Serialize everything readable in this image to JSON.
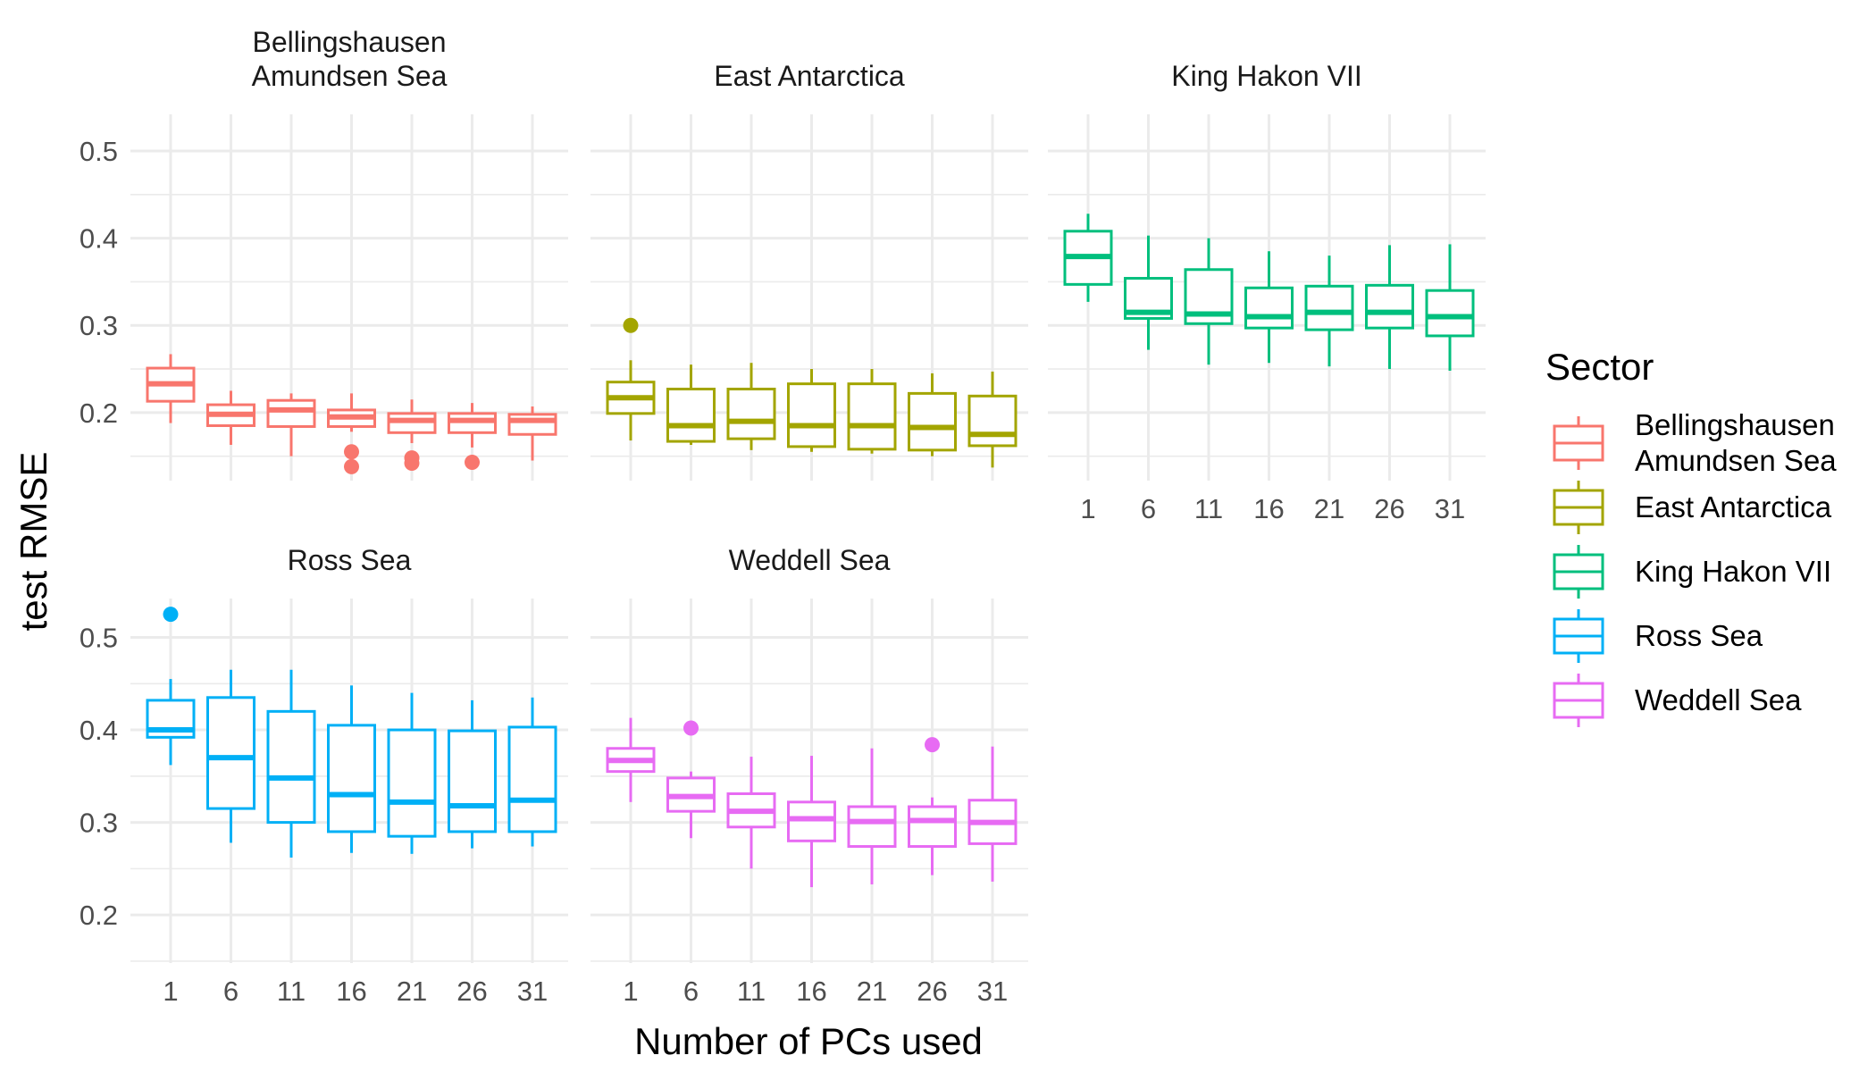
{
  "chart_data": {
    "type": "boxplot",
    "xlabel": "Number of PCs used",
    "ylabel": "test RMSE",
    "x_categories": [
      "1",
      "6",
      "11",
      "16",
      "21",
      "26",
      "31"
    ],
    "y_ticks": [
      0.2,
      0.3,
      0.4,
      0.5
    ],
    "y_tick_labels": [
      "0.2",
      "0.3",
      "0.4",
      "0.5"
    ],
    "rows": [
      {
        "ylim": [
          0.122,
          0.542
        ]
      },
      {
        "ylim": [
          0.148,
          0.542
        ]
      }
    ],
    "grid": true,
    "legend": {
      "title": "Sector",
      "position": "right",
      "items": [
        {
          "label_lines": [
            "Bellingshausen",
            "Amundsen Sea"
          ],
          "color": "#F8766D"
        },
        {
          "label_lines": [
            "East Antarctica"
          ],
          "color": "#A3A500"
        },
        {
          "label_lines": [
            "King Hakon VII"
          ],
          "color": "#00BF7D"
        },
        {
          "label_lines": [
            "Ross Sea"
          ],
          "color": "#00B0F6"
        },
        {
          "label_lines": [
            "Weddell Sea"
          ],
          "color": "#E76BF3"
        }
      ]
    },
    "facets": [
      {
        "title_lines": [
          "Bellingshausen",
          "Amundsen Sea"
        ],
        "color": "#F8766D",
        "row": 0,
        "col": 0,
        "show_x_ticks": false,
        "boxes": [
          {
            "x": "1",
            "low": 0.188,
            "q1": 0.213,
            "median": 0.233,
            "q3": 0.251,
            "high": 0.267,
            "outliers": []
          },
          {
            "x": "6",
            "low": 0.163,
            "q1": 0.185,
            "median": 0.198,
            "q3": 0.209,
            "high": 0.225,
            "outliers": []
          },
          {
            "x": "11",
            "low": 0.15,
            "q1": 0.184,
            "median": 0.203,
            "q3": 0.214,
            "high": 0.222,
            "outliers": []
          },
          {
            "x": "16",
            "low": 0.178,
            "q1": 0.184,
            "median": 0.195,
            "q3": 0.203,
            "high": 0.222,
            "outliers": [
              0.155,
              0.138
            ]
          },
          {
            "x": "21",
            "low": 0.165,
            "q1": 0.177,
            "median": 0.191,
            "q3": 0.199,
            "high": 0.215,
            "outliers": [
              0.148,
              0.142
            ]
          },
          {
            "x": "26",
            "low": 0.16,
            "q1": 0.177,
            "median": 0.191,
            "q3": 0.199,
            "high": 0.211,
            "outliers": [
              0.143
            ]
          },
          {
            "x": "31",
            "low": 0.145,
            "q1": 0.175,
            "median": 0.191,
            "q3": 0.198,
            "high": 0.207,
            "outliers": []
          }
        ]
      },
      {
        "title_lines": [
          "East Antarctica"
        ],
        "color": "#A3A500",
        "row": 0,
        "col": 1,
        "show_x_ticks": false,
        "boxes": [
          {
            "x": "1",
            "low": 0.168,
            "q1": 0.199,
            "median": 0.217,
            "q3": 0.235,
            "high": 0.26,
            "outliers": [
              0.3
            ]
          },
          {
            "x": "6",
            "low": 0.163,
            "q1": 0.167,
            "median": 0.185,
            "q3": 0.227,
            "high": 0.255,
            "outliers": []
          },
          {
            "x": "11",
            "low": 0.157,
            "q1": 0.17,
            "median": 0.19,
            "q3": 0.227,
            "high": 0.257,
            "outliers": []
          },
          {
            "x": "16",
            "low": 0.155,
            "q1": 0.161,
            "median": 0.185,
            "q3": 0.233,
            "high": 0.25,
            "outliers": []
          },
          {
            "x": "21",
            "low": 0.153,
            "q1": 0.158,
            "median": 0.185,
            "q3": 0.233,
            "high": 0.25,
            "outliers": []
          },
          {
            "x": "26",
            "low": 0.15,
            "q1": 0.157,
            "median": 0.183,
            "q3": 0.222,
            "high": 0.245,
            "outliers": []
          },
          {
            "x": "31",
            "low": 0.137,
            "q1": 0.162,
            "median": 0.175,
            "q3": 0.219,
            "high": 0.247,
            "outliers": []
          }
        ]
      },
      {
        "title_lines": [
          "King Hakon VII"
        ],
        "color": "#00BF7D",
        "row": 0,
        "col": 2,
        "show_x_ticks": true,
        "boxes": [
          {
            "x": "1",
            "low": 0.327,
            "q1": 0.347,
            "median": 0.379,
            "q3": 0.408,
            "high": 0.428,
            "outliers": []
          },
          {
            "x": "6",
            "low": 0.272,
            "q1": 0.308,
            "median": 0.315,
            "q3": 0.354,
            "high": 0.403,
            "outliers": []
          },
          {
            "x": "11",
            "low": 0.255,
            "q1": 0.302,
            "median": 0.313,
            "q3": 0.364,
            "high": 0.4,
            "outliers": []
          },
          {
            "x": "16",
            "low": 0.257,
            "q1": 0.297,
            "median": 0.31,
            "q3": 0.343,
            "high": 0.385,
            "outliers": []
          },
          {
            "x": "21",
            "low": 0.253,
            "q1": 0.295,
            "median": 0.315,
            "q3": 0.345,
            "high": 0.38,
            "outliers": []
          },
          {
            "x": "26",
            "low": 0.25,
            "q1": 0.297,
            "median": 0.315,
            "q3": 0.346,
            "high": 0.392,
            "outliers": []
          },
          {
            "x": "31",
            "low": 0.248,
            "q1": 0.288,
            "median": 0.31,
            "q3": 0.34,
            "high": 0.393,
            "outliers": []
          }
        ]
      },
      {
        "title_lines": [
          "Ross Sea"
        ],
        "color": "#00B0F6",
        "row": 1,
        "col": 0,
        "show_x_ticks": true,
        "boxes": [
          {
            "x": "1",
            "low": 0.362,
            "q1": 0.392,
            "median": 0.4,
            "q3": 0.432,
            "high": 0.455,
            "outliers": [
              0.525
            ]
          },
          {
            "x": "6",
            "low": 0.278,
            "q1": 0.315,
            "median": 0.37,
            "q3": 0.435,
            "high": 0.465,
            "outliers": []
          },
          {
            "x": "11",
            "low": 0.262,
            "q1": 0.3,
            "median": 0.348,
            "q3": 0.42,
            "high": 0.465,
            "outliers": []
          },
          {
            "x": "16",
            "low": 0.267,
            "q1": 0.29,
            "median": 0.33,
            "q3": 0.405,
            "high": 0.448,
            "outliers": []
          },
          {
            "x": "21",
            "low": 0.266,
            "q1": 0.285,
            "median": 0.322,
            "q3": 0.4,
            "high": 0.44,
            "outliers": []
          },
          {
            "x": "26",
            "low": 0.272,
            "q1": 0.29,
            "median": 0.318,
            "q3": 0.399,
            "high": 0.432,
            "outliers": []
          },
          {
            "x": "31",
            "low": 0.274,
            "q1": 0.29,
            "median": 0.324,
            "q3": 0.403,
            "high": 0.435,
            "outliers": []
          }
        ]
      },
      {
        "title_lines": [
          "Weddell Sea"
        ],
        "color": "#E76BF3",
        "row": 1,
        "col": 1,
        "show_x_ticks": true,
        "boxes": [
          {
            "x": "1",
            "low": 0.322,
            "q1": 0.355,
            "median": 0.367,
            "q3": 0.38,
            "high": 0.413,
            "outliers": []
          },
          {
            "x": "6",
            "low": 0.283,
            "q1": 0.312,
            "median": 0.328,
            "q3": 0.348,
            "high": 0.355,
            "outliers": [
              0.402
            ]
          },
          {
            "x": "11",
            "low": 0.25,
            "q1": 0.295,
            "median": 0.312,
            "q3": 0.331,
            "high": 0.371,
            "outliers": []
          },
          {
            "x": "16",
            "low": 0.23,
            "q1": 0.28,
            "median": 0.304,
            "q3": 0.322,
            "high": 0.372,
            "outliers": []
          },
          {
            "x": "21",
            "low": 0.233,
            "q1": 0.274,
            "median": 0.301,
            "q3": 0.317,
            "high": 0.38,
            "outliers": []
          },
          {
            "x": "26",
            "low": 0.243,
            "q1": 0.274,
            "median": 0.302,
            "q3": 0.317,
            "high": 0.327,
            "outliers": [
              0.384
            ]
          },
          {
            "x": "31",
            "low": 0.236,
            "q1": 0.277,
            "median": 0.3,
            "q3": 0.324,
            "high": 0.382,
            "outliers": []
          }
        ]
      }
    ]
  }
}
